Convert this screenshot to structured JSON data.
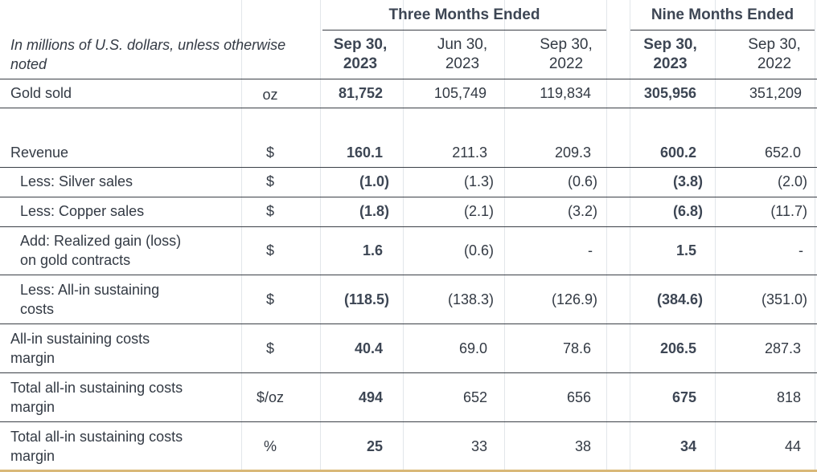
{
  "header": {
    "group_three": "Three Months Ended",
    "group_nine": "Nine Months Ended",
    "caption_line1": "In millions of U.S. dollars, unless otherwise",
    "caption_line2": "noted",
    "periods": [
      {
        "line1": "Sep 30,",
        "line2": "2023"
      },
      {
        "line1": "Jun 30,",
        "line2": "2023"
      },
      {
        "line1": "Sep 30,",
        "line2": "2022"
      },
      {
        "line1": "Sep 30,",
        "line2": "2023"
      },
      {
        "line1": "Sep 30,",
        "line2": "2022"
      }
    ]
  },
  "rows": [
    {
      "label1": "Gold sold",
      "label2": "",
      "unit": "oz",
      "values": [
        "81,752",
        "105,749",
        "119,834",
        "305,956",
        "351,209"
      ]
    },
    {
      "label1": "Revenue",
      "label2": "",
      "unit": "$",
      "values": [
        "160.1",
        "211.3",
        "209.3",
        "600.2",
        "652.0"
      ]
    },
    {
      "label1": "Less: Silver sales",
      "label2": "",
      "unit": "$",
      "values": [
        "(1.0)",
        "(1.3)",
        "(0.6)",
        "(3.8)",
        "(2.0)"
      ]
    },
    {
      "label1": "Less: Copper sales",
      "label2": "",
      "unit": "$",
      "values": [
        "(1.8)",
        "(2.1)",
        "(3.2)",
        "(6.8)",
        "(11.7)"
      ]
    },
    {
      "label1": "Add: Realized gain (loss)",
      "label2": "on gold contracts",
      "unit": "$",
      "values": [
        "1.6",
        "(0.6)",
        "-",
        "1.5",
        "-"
      ]
    },
    {
      "label1": "Less: All-in sustaining",
      "label2": "costs",
      "unit": "$",
      "values": [
        "(118.5)",
        "(138.3)",
        "(126.9)",
        "(384.6)",
        "(351.0)"
      ]
    },
    {
      "label1": "All-in sustaining costs",
      "label2": "margin",
      "unit": "$",
      "values": [
        "40.4",
        "69.0",
        "78.6",
        "206.5",
        "287.3"
      ]
    },
    {
      "label1": "Total all-in sustaining costs",
      "label2": "margin",
      "unit": "$/oz",
      "values": [
        "494",
        "652",
        "656",
        "675",
        "818"
      ]
    },
    {
      "label1": "Total all-in sustaining costs",
      "label2": "margin",
      "unit": "%",
      "values": [
        "25",
        "33",
        "38",
        "34",
        "44"
      ]
    }
  ]
}
